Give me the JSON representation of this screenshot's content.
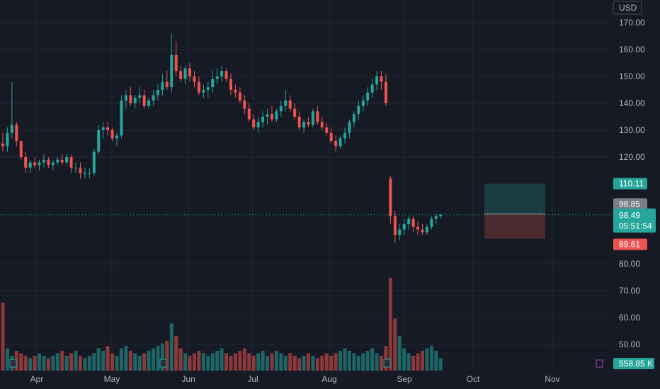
{
  "currency": "USD",
  "chart_data": {
    "type": "candlestick",
    "y_ticks": [
      "170.00",
      "160.00",
      "150.00",
      "140.00",
      "130.00",
      "120.00",
      "80.00",
      "70.00",
      "60.00",
      "50.00"
    ],
    "ylim": [
      44,
      176
    ],
    "x_ticks": [
      "Apr",
      "May",
      "Jun",
      "Jul",
      "Aug",
      "Sep",
      "Oct",
      "Nov"
    ],
    "price_tags": {
      "take_profit": "110.11",
      "entry": "98.85",
      "current_price": "98.49",
      "countdown": "05:51:54",
      "stop_loss": "89.61"
    },
    "position_tool": {
      "entry": 98.85,
      "target": 110.11,
      "stop": 89.61
    },
    "volume_label": "558.85 K",
    "candles": [
      [
        125,
        129,
        122,
        124
      ],
      [
        124,
        131,
        122,
        129
      ],
      [
        129,
        148,
        127,
        132
      ],
      [
        132,
        133,
        124,
        126
      ],
      [
        126,
        126,
        119,
        120
      ],
      [
        120,
        122,
        114,
        116
      ],
      [
        116,
        119,
        114,
        118
      ],
      [
        118,
        120,
        116,
        117
      ],
      [
        117,
        119,
        115,
        118
      ],
      [
        118,
        121,
        116,
        119
      ],
      [
        119,
        120,
        116,
        117
      ],
      [
        117,
        119,
        115,
        118
      ],
      [
        118,
        120,
        117,
        119
      ],
      [
        119,
        121,
        117,
        118
      ],
      [
        118,
        121,
        117,
        120
      ],
      [
        120,
        121,
        114,
        116
      ],
      [
        116,
        118,
        114,
        116
      ],
      [
        116,
        118,
        112,
        114
      ],
      [
        114,
        116,
        112,
        114
      ],
      [
        114,
        116,
        112,
        114
      ],
      [
        114,
        123,
        113,
        122
      ],
      [
        122,
        132,
        121,
        130
      ],
      [
        130,
        133,
        127,
        131
      ],
      [
        131,
        133,
        128,
        130
      ],
      [
        130,
        131,
        126,
        127
      ],
      [
        127,
        129,
        124,
        128
      ],
      [
        128,
        143,
        127,
        141
      ],
      [
        141,
        145,
        138,
        143
      ],
      [
        143,
        146,
        139,
        140
      ],
      [
        140,
        143,
        138,
        142
      ],
      [
        142,
        146,
        140,
        143
      ],
      [
        143,
        145,
        138,
        139
      ],
      [
        139,
        142,
        138,
        141
      ],
      [
        141,
        145,
        139,
        143
      ],
      [
        143,
        147,
        141,
        145
      ],
      [
        145,
        151,
        143,
        148
      ],
      [
        148,
        152,
        145,
        146
      ],
      [
        146,
        166,
        144,
        158
      ],
      [
        158,
        163,
        150,
        152
      ],
      [
        152,
        154,
        148,
        149
      ],
      [
        149,
        154,
        147,
        153
      ],
      [
        153,
        155,
        148,
        150
      ],
      [
        150,
        152,
        146,
        148
      ],
      [
        148,
        150,
        143,
        144
      ],
      [
        144,
        147,
        142,
        145
      ],
      [
        145,
        148,
        142,
        146
      ],
      [
        146,
        152,
        144,
        149
      ],
      [
        149,
        153,
        147,
        150
      ],
      [
        150,
        154,
        148,
        152
      ],
      [
        152,
        153,
        148,
        149
      ],
      [
        149,
        151,
        143,
        145
      ],
      [
        145,
        147,
        142,
        144
      ],
      [
        144,
        146,
        140,
        141
      ],
      [
        141,
        143,
        136,
        138
      ],
      [
        138,
        140,
        133,
        134
      ],
      [
        134,
        136,
        130,
        131
      ],
      [
        131,
        135,
        129,
        133
      ],
      [
        133,
        137,
        131,
        135
      ],
      [
        135,
        138,
        132,
        136
      ],
      [
        136,
        139,
        133,
        134
      ],
      [
        134,
        138,
        133,
        137
      ],
      [
        137,
        141,
        135,
        139
      ],
      [
        139,
        145,
        137,
        141
      ],
      [
        141,
        143,
        137,
        138
      ],
      [
        138,
        140,
        134,
        135
      ],
      [
        135,
        137,
        130,
        131
      ],
      [
        131,
        134,
        129,
        133
      ],
      [
        133,
        135,
        131,
        132
      ],
      [
        132,
        138,
        131,
        137
      ],
      [
        137,
        139,
        132,
        133
      ],
      [
        133,
        135,
        130,
        131
      ],
      [
        131,
        133,
        128,
        129
      ],
      [
        129,
        131,
        125,
        126
      ],
      [
        126,
        128,
        122,
        124
      ],
      [
        124,
        128,
        123,
        127
      ],
      [
        127,
        131,
        125,
        129
      ],
      [
        129,
        134,
        127,
        133
      ],
      [
        133,
        137,
        131,
        136
      ],
      [
        136,
        141,
        134,
        139
      ],
      [
        139,
        143,
        137,
        141
      ],
      [
        141,
        146,
        139,
        144
      ],
      [
        144,
        149,
        142,
        147
      ],
      [
        147,
        152,
        145,
        150
      ],
      [
        150,
        152,
        145,
        148
      ],
      [
        148,
        151,
        139,
        140
      ],
      [
        112,
        113,
        95,
        98
      ],
      [
        98,
        100,
        88,
        91
      ],
      [
        91,
        95,
        89,
        93
      ],
      [
        93,
        97,
        91,
        95
      ],
      [
        95,
        98,
        93,
        97
      ],
      [
        97,
        98,
        92,
        94
      ],
      [
        94,
        96,
        91,
        93
      ],
      [
        93,
        95,
        91,
        92
      ],
      [
        92,
        95,
        91,
        94
      ],
      [
        94,
        98,
        93,
        97
      ],
      [
        97,
        99,
        95,
        98
      ],
      [
        98,
        99,
        97,
        98.5
      ]
    ],
    "volumes": [
      0.55,
      0.18,
      0.12,
      0.16,
      0.14,
      0.12,
      0.1,
      0.12,
      0.14,
      0.12,
      0.1,
      0.12,
      0.14,
      0.16,
      0.12,
      0.14,
      0.16,
      0.12,
      0.1,
      0.12,
      0.14,
      0.18,
      0.16,
      0.2,
      0.14,
      0.12,
      0.18,
      0.2,
      0.16,
      0.14,
      0.12,
      0.14,
      0.16,
      0.18,
      0.2,
      0.22,
      0.24,
      0.38,
      0.28,
      0.18,
      0.14,
      0.12,
      0.14,
      0.16,
      0.14,
      0.12,
      0.14,
      0.16,
      0.18,
      0.14,
      0.12,
      0.14,
      0.16,
      0.18,
      0.14,
      0.12,
      0.14,
      0.16,
      0.12,
      0.14,
      0.16,
      0.14,
      0.12,
      0.14,
      0.12,
      0.1,
      0.12,
      0.14,
      0.12,
      0.1,
      0.12,
      0.14,
      0.12,
      0.14,
      0.16,
      0.18,
      0.16,
      0.14,
      0.12,
      0.14,
      0.16,
      0.18,
      0.14,
      0.12,
      0.2,
      0.75,
      0.42,
      0.28,
      0.18,
      0.14,
      0.12,
      0.14,
      0.16,
      0.18,
      0.2,
      0.16,
      0.1
    ]
  }
}
